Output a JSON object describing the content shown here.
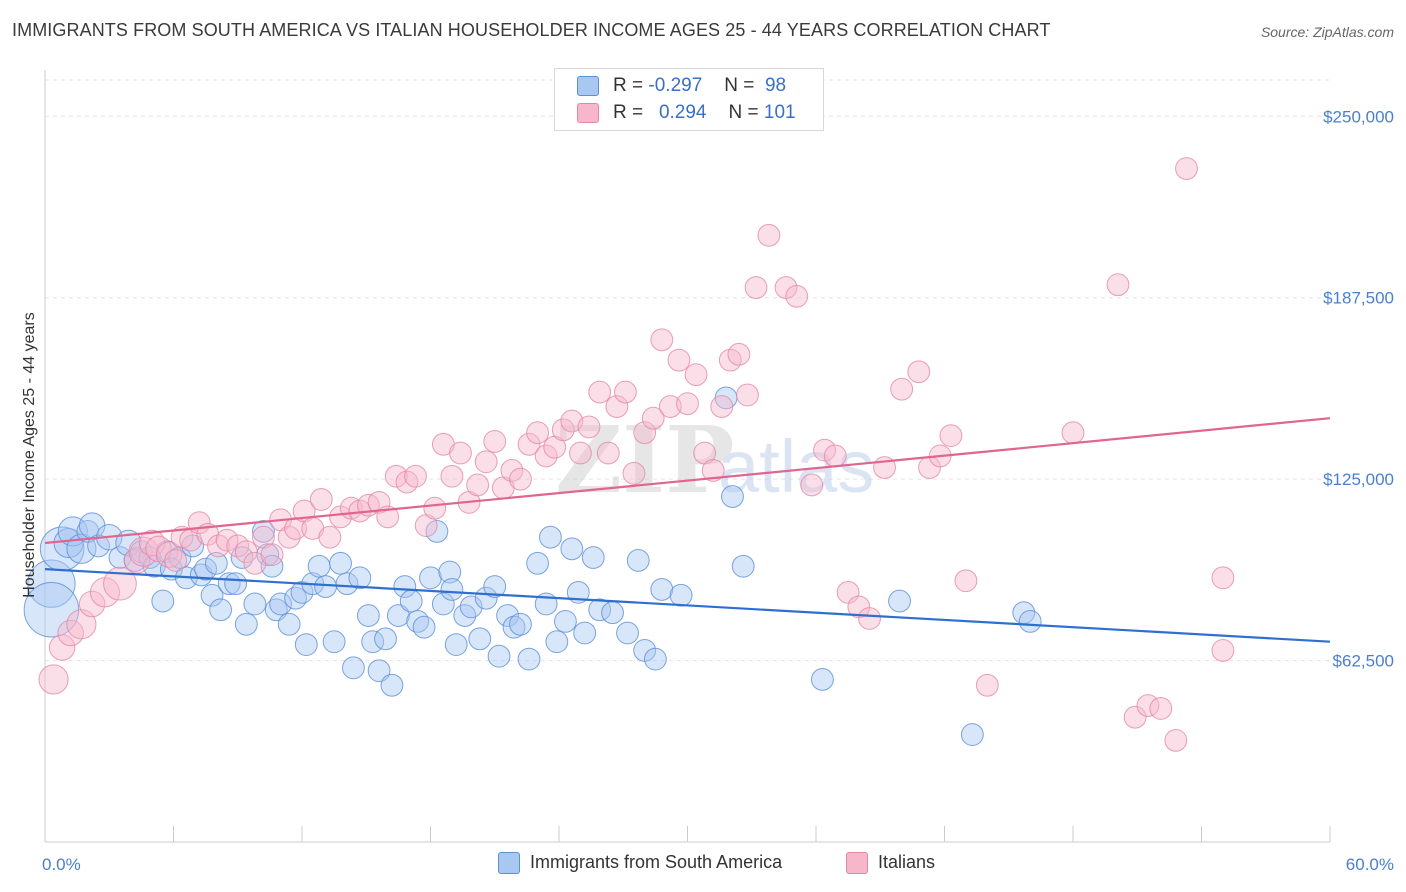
{
  "title": "IMMIGRANTS FROM SOUTH AMERICA VS ITALIAN HOUSEHOLDER INCOME AGES 25 - 44 YEARS CORRELATION CHART",
  "source": "Source: ZipAtlas.com",
  "watermark": {
    "zip": "ZIP",
    "atlas": "atlas"
  },
  "legend": {
    "r_label": "R =",
    "n_label": "N =",
    "rows": [
      {
        "r": "-0.297",
        "n": "98",
        "color": "#a9c8f1",
        "border": "#5b8fd8"
      },
      {
        "r": "0.294",
        "n": "101",
        "color": "#f6b7cb",
        "border": "#e487a6"
      }
    ]
  },
  "bottom_legend": [
    "Immigrants from South America",
    "Italians"
  ],
  "chart_data": {
    "type": "scatter",
    "xlim": [
      0,
      60
    ],
    "ylim": [
      0,
      262500
    ],
    "x_tick_labels": [
      "0.0%",
      "60.0%"
    ],
    "y_ticks": [
      62500,
      125000,
      187500,
      250000
    ],
    "y_tick_labels": [
      "$62,500",
      "$125,000",
      "$187,500",
      "$250,000"
    ],
    "ylabel": "Householder Income Ages 25 - 44 years",
    "grid": true,
    "series": [
      {
        "name": "Immigrants from South America",
        "color": "#a9c8f1",
        "stroke": "#5b8fd8",
        "line_color": "#2f6fd0",
        "trend": {
          "x0": 0,
          "y0": 94000,
          "x1": 60,
          "y1": 69000
        },
        "points": [
          [
            0.3,
            89000,
            26
          ],
          [
            0.3,
            80000,
            30
          ],
          [
            0.8,
            101000,
            24
          ],
          [
            1.1,
            103000,
            16
          ],
          [
            1.3,
            107000,
            16
          ],
          [
            1.7,
            101000,
            16
          ],
          [
            2.0,
            107000,
            12
          ],
          [
            2.2,
            109000,
            14
          ],
          [
            2.5,
            102000,
            12
          ],
          [
            3.0,
            105000,
            14
          ],
          [
            3.5,
            98000,
            12
          ],
          [
            3.9,
            103000,
            14
          ],
          [
            4.2,
            97000,
            12
          ],
          [
            4.5,
            100000,
            12
          ],
          [
            4.9,
            98000,
            12
          ],
          [
            5.1,
            95000,
            12
          ],
          [
            5.5,
            83000,
            12
          ],
          [
            5.7,
            100000,
            12
          ],
          [
            5.9,
            94000,
            12
          ],
          [
            6.3,
            98000,
            12
          ],
          [
            6.6,
            91000,
            12
          ],
          [
            6.9,
            102000,
            12
          ],
          [
            7.3,
            92000,
            12
          ],
          [
            7.5,
            94000,
            12
          ],
          [
            7.8,
            85000,
            12
          ],
          [
            8.0,
            96000,
            12
          ],
          [
            8.2,
            80000,
            12
          ],
          [
            8.6,
            89000,
            12
          ],
          [
            8.9,
            89000,
            12
          ],
          [
            9.2,
            98000,
            12
          ],
          [
            9.4,
            75000,
            12
          ],
          [
            9.8,
            82000,
            12
          ],
          [
            10.2,
            107000,
            12
          ],
          [
            10.4,
            99000,
            12
          ],
          [
            10.6,
            95000,
            12
          ],
          [
            10.8,
            80000,
            12
          ],
          [
            11.0,
            82000,
            12
          ],
          [
            11.4,
            75000,
            12
          ],
          [
            11.7,
            84000,
            12
          ],
          [
            12.0,
            86000,
            12
          ],
          [
            12.2,
            68000,
            12
          ],
          [
            12.5,
            89000,
            12
          ],
          [
            12.8,
            95000,
            12
          ],
          [
            13.1,
            88000,
            12
          ],
          [
            13.5,
            69000,
            12
          ],
          [
            13.8,
            96000,
            12
          ],
          [
            14.1,
            89000,
            12
          ],
          [
            14.4,
            60000,
            12
          ],
          [
            14.7,
            91000,
            12
          ],
          [
            15.1,
            78000,
            12
          ],
          [
            15.3,
            69000,
            12
          ],
          [
            15.6,
            59000,
            12
          ],
          [
            15.9,
            70000,
            12
          ],
          [
            16.2,
            54000,
            12
          ],
          [
            16.5,
            78000,
            12
          ],
          [
            16.8,
            88000,
            12
          ],
          [
            17.1,
            83000,
            12
          ],
          [
            17.4,
            76000,
            12
          ],
          [
            17.7,
            74000,
            12
          ],
          [
            18.0,
            91000,
            12
          ],
          [
            18.3,
            107000,
            12
          ],
          [
            18.6,
            82000,
            12
          ],
          [
            18.9,
            93000,
            12
          ],
          [
            19.0,
            87000,
            12
          ],
          [
            19.2,
            68000,
            12
          ],
          [
            19.6,
            78000,
            12
          ],
          [
            19.9,
            81000,
            12
          ],
          [
            20.3,
            70000,
            12
          ],
          [
            20.6,
            84000,
            12
          ],
          [
            21.0,
            88000,
            12
          ],
          [
            21.2,
            64000,
            12
          ],
          [
            21.6,
            78000,
            12
          ],
          [
            21.9,
            74000,
            12
          ],
          [
            22.2,
            75000,
            12
          ],
          [
            22.6,
            63000,
            12
          ],
          [
            23.0,
            96000,
            12
          ],
          [
            23.4,
            82000,
            12
          ],
          [
            23.6,
            105000,
            12
          ],
          [
            23.9,
            69000,
            12
          ],
          [
            24.3,
            76000,
            12
          ],
          [
            24.6,
            101000,
            12
          ],
          [
            24.9,
            86000,
            12
          ],
          [
            25.2,
            72000,
            12
          ],
          [
            25.6,
            98000,
            12
          ],
          [
            25.9,
            80000,
            12
          ],
          [
            26.5,
            79000,
            12
          ],
          [
            27.2,
            72000,
            12
          ],
          [
            27.7,
            97000,
            12
          ],
          [
            28.0,
            66000,
            12
          ],
          [
            28.5,
            63000,
            12
          ],
          [
            28.8,
            87000,
            12
          ],
          [
            29.7,
            85000,
            12
          ],
          [
            31.8,
            153000,
            12
          ],
          [
            32.1,
            119000,
            12
          ],
          [
            32.6,
            95000,
            12
          ],
          [
            36.3,
            56000,
            12
          ],
          [
            39.9,
            83000,
            12
          ],
          [
            43.3,
            37000,
            12
          ],
          [
            45.7,
            79000,
            12
          ],
          [
            46.0,
            76000,
            12
          ]
        ]
      },
      {
        "name": "Italians",
        "color": "#f6b7cb",
        "stroke": "#e487a6",
        "line_color": "#e0658f",
        "trend": {
          "x0": 0,
          "y0": 103000,
          "x1": 60,
          "y1": 146000
        },
        "points": [
          [
            0.4,
            56000,
            16
          ],
          [
            0.8,
            67000,
            14
          ],
          [
            1.2,
            72000,
            14
          ],
          [
            1.7,
            75000,
            16
          ],
          [
            2.2,
            82000,
            14
          ],
          [
            2.8,
            86000,
            16
          ],
          [
            3.5,
            89000,
            18
          ],
          [
            4.3,
            97000,
            14
          ],
          [
            4.6,
            100000,
            16
          ],
          [
            5.0,
            103000,
            14
          ],
          [
            5.3,
            101000,
            14
          ],
          [
            5.8,
            99000,
            14
          ],
          [
            6.1,
            97000,
            12
          ],
          [
            6.4,
            105000,
            12
          ],
          [
            6.8,
            104000,
            12
          ],
          [
            7.2,
            110000,
            12
          ],
          [
            7.6,
            106000,
            12
          ],
          [
            8.1,
            102000,
            12
          ],
          [
            8.5,
            104000,
            12
          ],
          [
            9.0,
            102000,
            12
          ],
          [
            9.4,
            100000,
            12
          ],
          [
            9.8,
            96000,
            12
          ],
          [
            10.2,
            105000,
            12
          ],
          [
            10.6,
            99000,
            12
          ],
          [
            11.0,
            111000,
            12
          ],
          [
            11.4,
            105000,
            12
          ],
          [
            11.7,
            108000,
            12
          ],
          [
            12.1,
            114000,
            12
          ],
          [
            12.5,
            108000,
            12
          ],
          [
            12.9,
            118000,
            12
          ],
          [
            13.3,
            105000,
            12
          ],
          [
            13.8,
            112000,
            12
          ],
          [
            14.3,
            115000,
            12
          ],
          [
            14.7,
            114000,
            12
          ],
          [
            15.1,
            116000,
            12
          ],
          [
            15.6,
            117000,
            12
          ],
          [
            16.0,
            112000,
            12
          ],
          [
            16.4,
            126000,
            12
          ],
          [
            16.9,
            124000,
            12
          ],
          [
            17.3,
            126000,
            12
          ],
          [
            17.8,
            109000,
            12
          ],
          [
            18.2,
            115000,
            12
          ],
          [
            18.6,
            137000,
            12
          ],
          [
            19.0,
            126000,
            12
          ],
          [
            19.4,
            134000,
            12
          ],
          [
            19.8,
            117000,
            12
          ],
          [
            20.2,
            123000,
            12
          ],
          [
            20.6,
            131000,
            12
          ],
          [
            21.0,
            138000,
            12
          ],
          [
            21.4,
            122000,
            12
          ],
          [
            21.8,
            128000,
            12
          ],
          [
            22.2,
            125000,
            12
          ],
          [
            22.6,
            137000,
            12
          ],
          [
            23.0,
            141000,
            12
          ],
          [
            23.4,
            133000,
            12
          ],
          [
            23.8,
            136000,
            12
          ],
          [
            24.2,
            142000,
            12
          ],
          [
            24.6,
            145000,
            12
          ],
          [
            25.0,
            134000,
            12
          ],
          [
            25.4,
            143000,
            12
          ],
          [
            25.9,
            155000,
            12
          ],
          [
            26.3,
            134000,
            12
          ],
          [
            26.7,
            150000,
            12
          ],
          [
            27.1,
            155000,
            12
          ],
          [
            27.5,
            127000,
            12
          ],
          [
            28.0,
            141000,
            12
          ],
          [
            28.4,
            146000,
            12
          ],
          [
            28.8,
            173000,
            12
          ],
          [
            29.2,
            150000,
            12
          ],
          [
            29.6,
            166000,
            12
          ],
          [
            30.0,
            151000,
            12
          ],
          [
            30.4,
            161000,
            12
          ],
          [
            30.8,
            134000,
            12
          ],
          [
            31.2,
            128000,
            12
          ],
          [
            31.6,
            150000,
            12
          ],
          [
            32.0,
            166000,
            12
          ],
          [
            32.4,
            168000,
            12
          ],
          [
            32.8,
            154000,
            12
          ],
          [
            33.2,
            191000,
            12
          ],
          [
            33.8,
            209000,
            12
          ],
          [
            34.6,
            191000,
            12
          ],
          [
            35.1,
            188000,
            12
          ],
          [
            35.8,
            123000,
            12
          ],
          [
            36.4,
            135000,
            12
          ],
          [
            36.9,
            133000,
            12
          ],
          [
            37.5,
            86000,
            12
          ],
          [
            38.0,
            81000,
            12
          ],
          [
            38.5,
            77000,
            12
          ],
          [
            39.2,
            129000,
            12
          ],
          [
            40.0,
            156000,
            12
          ],
          [
            40.8,
            162000,
            12
          ],
          [
            41.3,
            129000,
            12
          ],
          [
            41.8,
            133000,
            12
          ],
          [
            42.3,
            140000,
            12
          ],
          [
            43.0,
            90000,
            12
          ],
          [
            44.0,
            54000,
            12
          ],
          [
            48.0,
            141000,
            12
          ],
          [
            50.1,
            192000,
            12
          ],
          [
            50.9,
            43000,
            12
          ],
          [
            51.5,
            47000,
            12
          ],
          [
            52.8,
            35000,
            12
          ],
          [
            53.3,
            232000,
            12
          ],
          [
            55.0,
            66000,
            12
          ],
          [
            55.0,
            91000,
            12
          ],
          [
            52.1,
            46000,
            12
          ]
        ]
      }
    ]
  }
}
